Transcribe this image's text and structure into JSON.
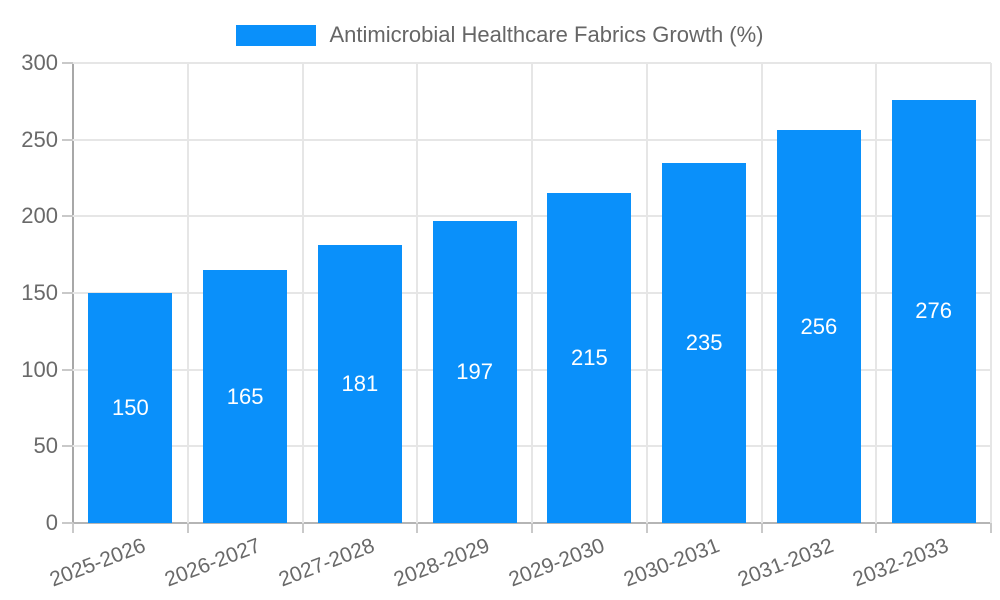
{
  "chart_data": {
    "type": "bar",
    "title": "Antimicrobial Healthcare Fabrics Growth (%)",
    "legend": {
      "position": "top",
      "label": "Antimicrobial Healthcare Fabrics Growth (%)"
    },
    "categories": [
      "2025-2026",
      "2026-2027",
      "2027-2028",
      "2028-2029",
      "2029-2030",
      "2030-2031",
      "2031-2032",
      "2032-2033"
    ],
    "values": [
      150,
      165,
      181,
      197,
      215,
      235,
      256,
      276
    ],
    "xlabel": "",
    "ylabel": "",
    "ylim": [
      0,
      300
    ],
    "yticks": [
      0,
      50,
      100,
      150,
      200,
      250,
      300
    ],
    "grid": true,
    "value_labels": "centered-inside-bars",
    "colors": {
      "bar": "#0a90fa",
      "value_label": "#ffffff",
      "grid_line": "#e6e6e6",
      "axis_line": "#a8a8a8",
      "tick_text": "#696969",
      "legend_text": "#666666",
      "background": "#ffffff"
    }
  }
}
